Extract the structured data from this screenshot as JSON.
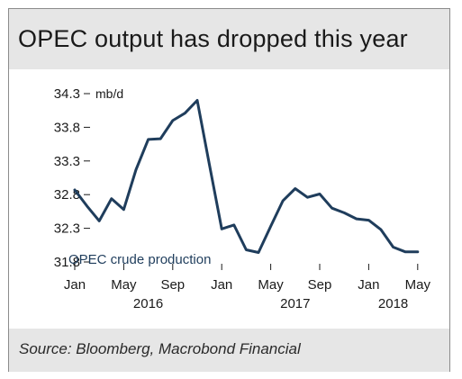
{
  "title": "OPEC output has dropped this year",
  "source": "Source: Bloomberg, Macrobond Financial",
  "colors": {
    "line": "#1f3d5c",
    "axis": "#1a1a1a",
    "panel": "#e6e6e6"
  },
  "chart_data": {
    "type": "line",
    "title": "OPEC output has dropped this year",
    "ylabel": "mb/d",
    "ylim": [
      31.8,
      34.3
    ],
    "yticks": [
      "34.3",
      "33.8",
      "33.3",
      "32.8",
      "32.3",
      "31.8"
    ],
    "ytick_values": [
      34.3,
      33.8,
      33.3,
      32.8,
      32.3,
      31.8
    ],
    "xticks": [
      "Jan",
      "May",
      "Sep",
      "Jan",
      "May",
      "Sep",
      "Jan",
      "May"
    ],
    "year_labels": [
      "2016",
      "2017",
      "2018"
    ],
    "grid": false,
    "series": [
      {
        "name": "OPEC crude production",
        "x": [
          "2016-01",
          "2016-02",
          "2016-03",
          "2016-04",
          "2016-05",
          "2016-06",
          "2016-07",
          "2016-08",
          "2016-09",
          "2016-10",
          "2016-11",
          "2016-12",
          "2017-01",
          "2017-02",
          "2017-03",
          "2017-04",
          "2017-05",
          "2017-06",
          "2017-07",
          "2017-08",
          "2017-09",
          "2017-10",
          "2017-11",
          "2017-12",
          "2018-01",
          "2018-02",
          "2018-03",
          "2018-04",
          "2018-05"
        ],
        "values": [
          32.87,
          32.63,
          32.41,
          32.74,
          32.58,
          33.17,
          33.62,
          33.63,
          33.9,
          34.01,
          34.2,
          33.24,
          32.29,
          32.35,
          31.98,
          31.94,
          32.33,
          32.71,
          32.89,
          32.76,
          32.81,
          32.6,
          32.53,
          32.44,
          32.42,
          32.28,
          32.02,
          31.95,
          31.95
        ]
      }
    ]
  }
}
